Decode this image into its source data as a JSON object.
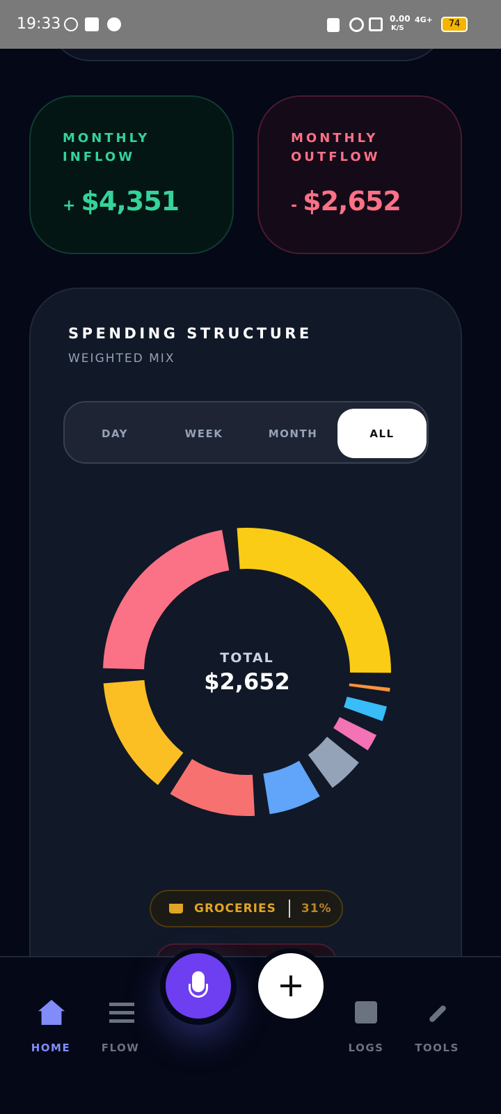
{
  "status_bar": {
    "time": "19:33",
    "speed": "0.00",
    "speed_unit": "K/S",
    "network": "4G+",
    "battery": "74"
  },
  "inflow": {
    "label_1": "MONTHLY",
    "label_2": "INFLOW",
    "sign": "+",
    "amount": "$4,351"
  },
  "outflow": {
    "label_1": "MONTHLY",
    "label_2": "OUTFLOW",
    "sign": "-",
    "amount": "$2,652"
  },
  "spending": {
    "title": "SPENDING STRUCTURE",
    "subtitle": "WEIGHTED MIX",
    "tabs": [
      "DAY",
      "WEEK",
      "MONTH",
      "ALL"
    ],
    "selected_tab": "ALL",
    "chart_data": {
      "type": "donut",
      "center_label": "TOTAL",
      "center_value": "$2,652",
      "values": [
        31,
        0.5,
        2,
        2.3,
        4.8,
        7,
        11.6,
        15.5,
        25.8
      ],
      "colors": [
        "#facc15",
        "#fb923c",
        "#38bdf8",
        "#f472b6",
        "#94a3b8",
        "#60a5fa",
        "#f87171",
        "#fbbf24",
        "#fb7185"
      ]
    },
    "chip": {
      "label": "GROCERIES",
      "percent": "31%"
    }
  },
  "nav": [
    "HOME",
    "FLOW",
    "LOGS",
    "TOOLS"
  ],
  "active_nav": "HOME"
}
